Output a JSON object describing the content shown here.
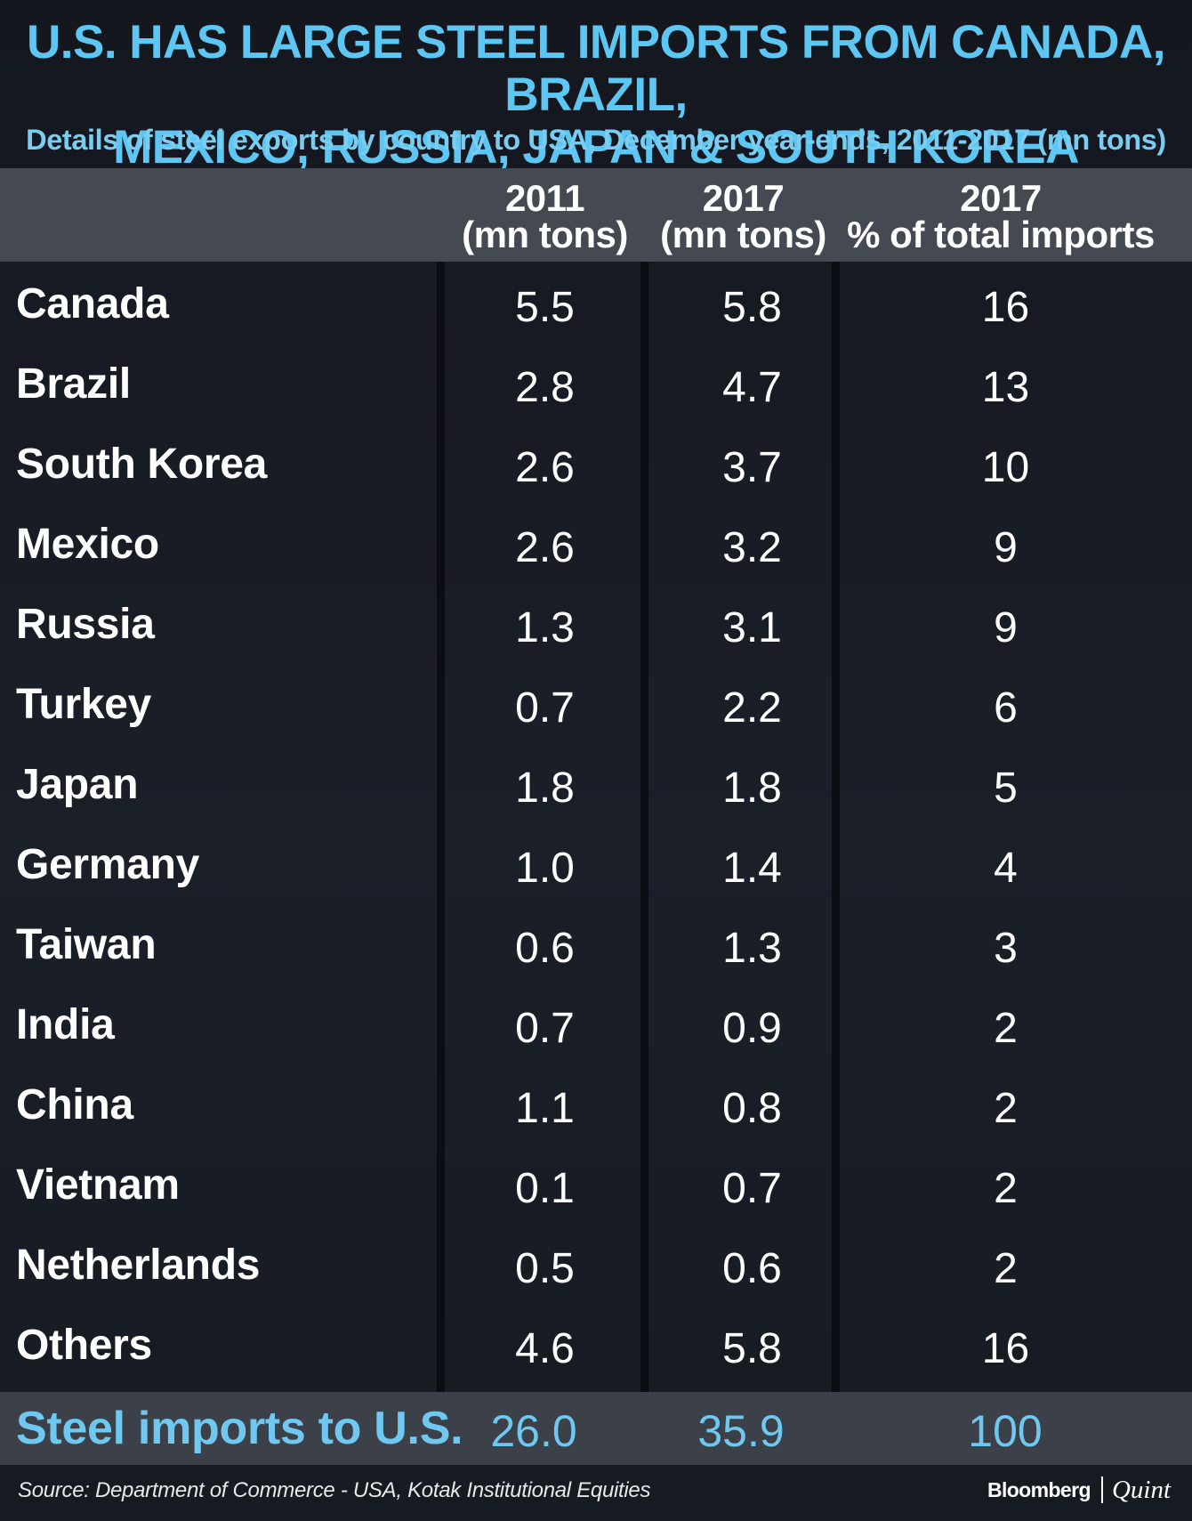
{
  "title_line1": "U.S. HAS LARGE STEEL IMPORTS FROM CANADA, BRAZIL,",
  "title_line2": "MEXICO, RUSSIA, JAPAN & SOUTH KOREA",
  "subtitle": "Details of steel exports by country to USA, December year-ends, 2011-2017 (mn tons)",
  "columns": [
    {
      "line1": "2011",
      "line2": "(mn tons)"
    },
    {
      "line1": "2017",
      "line2": "(mn tons)"
    },
    {
      "line1": "2017",
      "line2": "% of total imports"
    }
  ],
  "chart_data": {
    "type": "table",
    "title": "U.S. HAS LARGE STEEL IMPORTS FROM CANADA, BRAZIL, MEXICO, RUSSIA, JAPAN & SOUTH KOREA",
    "subtitle": "Details of steel exports by country to USA, December year-ends, 2011-2017 (mn tons)",
    "headers": [
      "2011 (mn tons)",
      "2017 (mn tons)",
      "2017 % of total imports"
    ],
    "rows": [
      {
        "country": "Canada",
        "v2011": "5.5",
        "v2017": "5.8",
        "pct": "16"
      },
      {
        "country": "Brazil",
        "v2011": "2.8",
        "v2017": "4.7",
        "pct": "13"
      },
      {
        "country": "South Korea",
        "v2011": "2.6",
        "v2017": "3.7",
        "pct": "10"
      },
      {
        "country": "Mexico",
        "v2011": "2.6",
        "v2017": "3.2",
        "pct": "9"
      },
      {
        "country": "Russia",
        "v2011": "1.3",
        "v2017": "3.1",
        "pct": "9"
      },
      {
        "country": "Turkey",
        "v2011": "0.7",
        "v2017": "2.2",
        "pct": "6"
      },
      {
        "country": "Japan",
        "v2011": "1.8",
        "v2017": "1.8",
        "pct": "5"
      },
      {
        "country": "Germany",
        "v2011": "1.0",
        "v2017": "1.4",
        "pct": "4"
      },
      {
        "country": "Taiwan",
        "v2011": "0.6",
        "v2017": "1.3",
        "pct": "3"
      },
      {
        "country": "India",
        "v2011": "0.7",
        "v2017": "0.9",
        "pct": "2"
      },
      {
        "country": "China",
        "v2011": "1.1",
        "v2017": "0.8",
        "pct": "2"
      },
      {
        "country": "Vietnam",
        "v2011": "0.1",
        "v2017": "0.7",
        "pct": "2"
      },
      {
        "country": "Netherlands",
        "v2011": "0.5",
        "v2017": "0.6",
        "pct": "2"
      },
      {
        "country": "Others",
        "v2011": "4.6",
        "v2017": "5.8",
        "pct": "16"
      }
    ],
    "total": {
      "label": "Steel imports to U.S.",
      "v2011": "26.0",
      "v2017": "35.9",
      "pct": "100"
    }
  },
  "source": "Source: Department of Commerce - USA, Kotak Institutional Equities",
  "logo": {
    "primary": "Bloomberg",
    "secondary": "Quint"
  },
  "colors": {
    "title": "#5ec6f2",
    "subtitle": "#78cdf0",
    "total_text": "#6fc8f0",
    "header_band": "#454a52",
    "total_band": "#3c4149",
    "background": "#1b1f28"
  }
}
